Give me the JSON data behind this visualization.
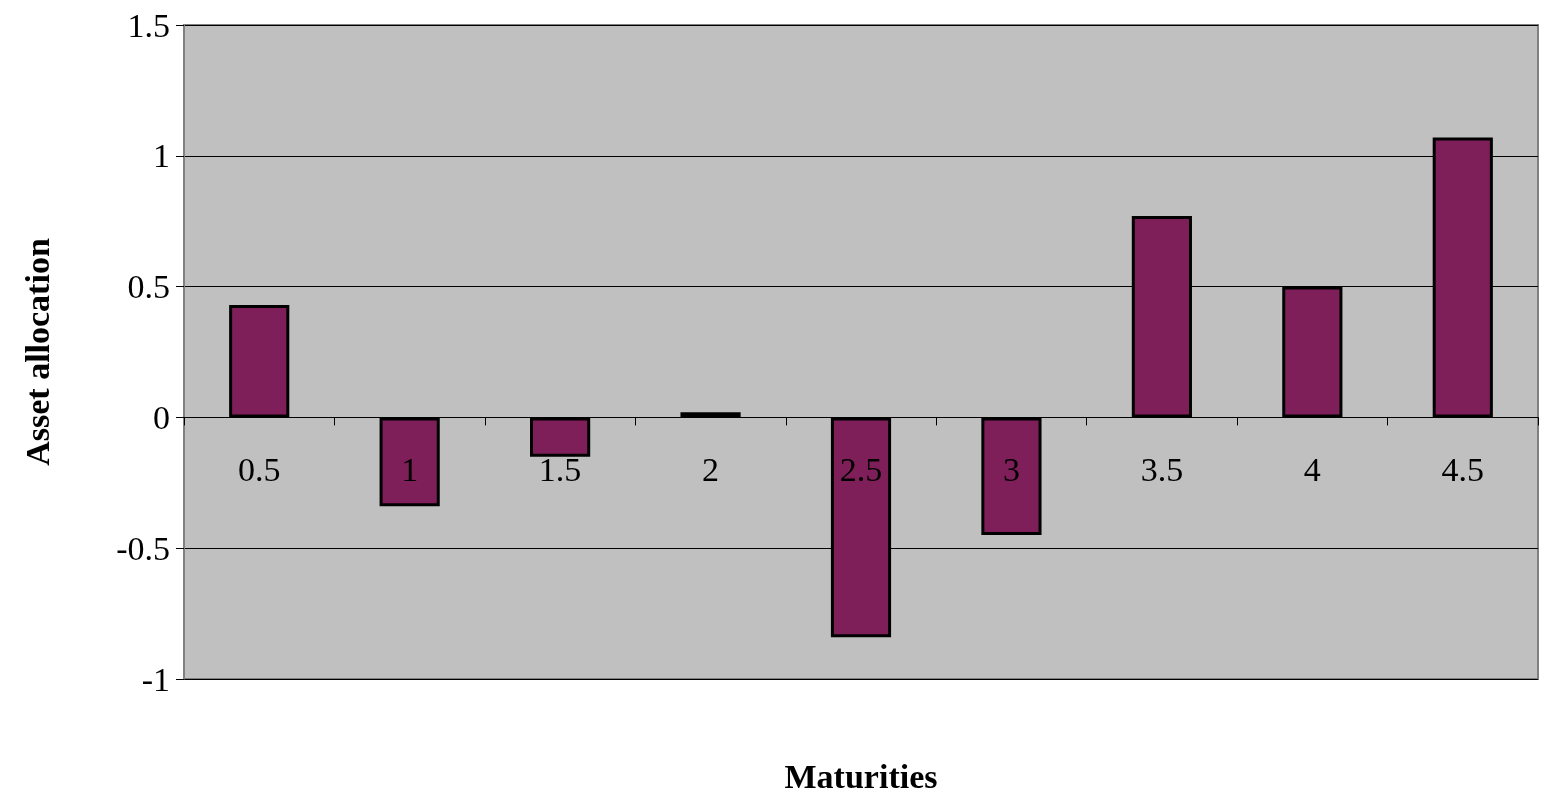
{
  "chart_data": {
    "type": "bar",
    "xlabel": "Maturities",
    "ylabel": "Asset allocation",
    "categories": [
      "0.5",
      "1",
      "1.5",
      "2",
      "2.5",
      "3",
      "3.5",
      "4",
      "4.5"
    ],
    "values": [
      0.43,
      -0.34,
      -0.15,
      0.02,
      -0.84,
      -0.45,
      0.77,
      0.5,
      1.07
    ],
    "color": "#7f1f5a",
    "ylim": [
      -1,
      1.5
    ],
    "yticks": [
      -1,
      -0.5,
      0,
      0.5,
      1,
      1.5
    ],
    "grid": "y"
  }
}
